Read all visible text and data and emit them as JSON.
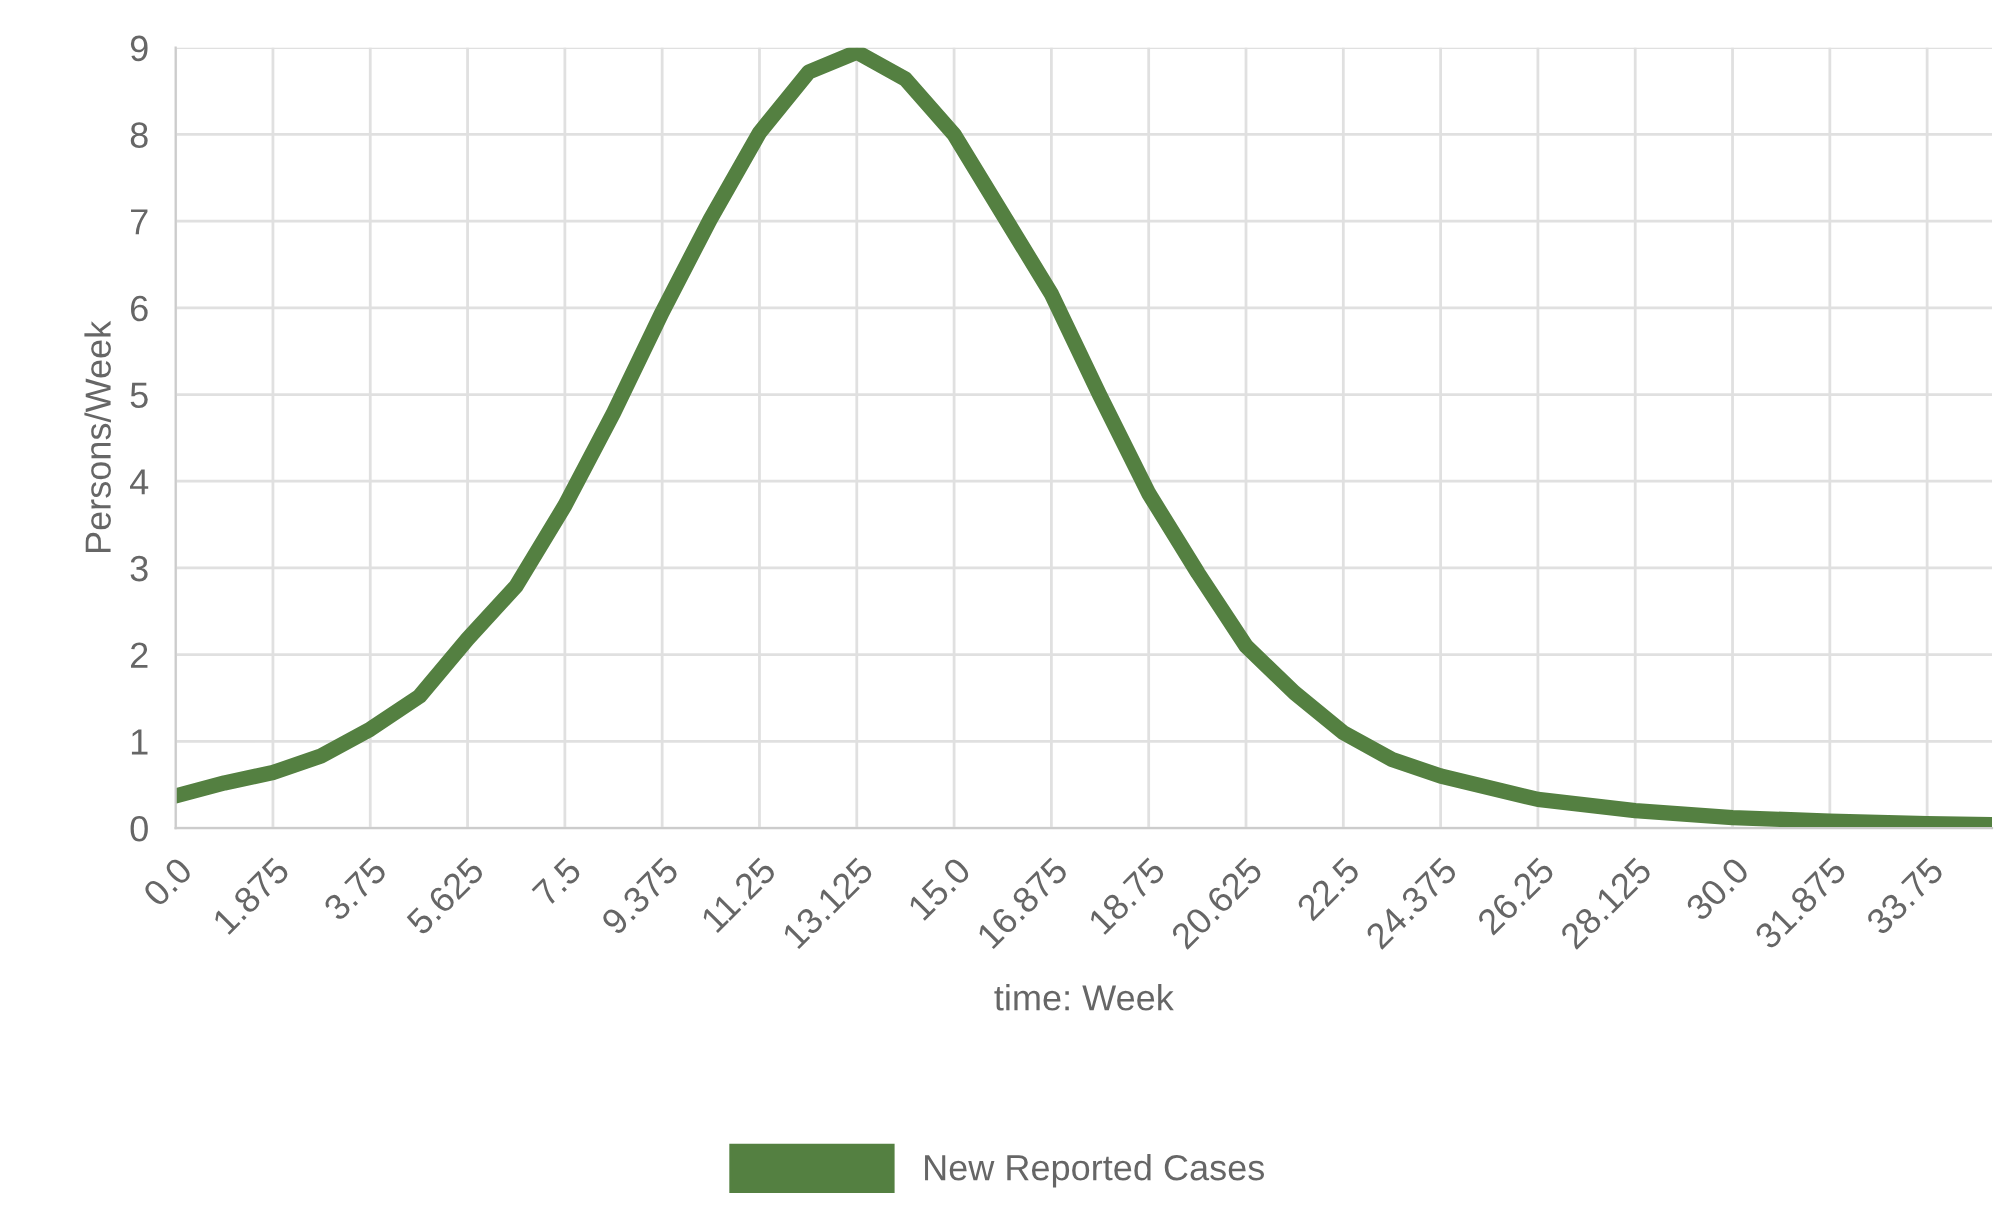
{
  "chart_data": {
    "type": "line",
    "xlabel": "time: Week",
    "ylabel": "Persons/Week",
    "x": [
      0,
      0.94,
      1.875,
      2.8,
      3.75,
      4.7,
      5.625,
      6.56,
      7.5,
      8.44,
      9.375,
      10.3,
      11.25,
      12.2,
      13.125,
      14.06,
      15.0,
      16.875,
      17.8,
      18.75,
      19.7,
      20.625,
      21.56,
      22.5,
      23.44,
      24.375,
      26.25,
      28.125,
      30.0,
      31.875,
      33.75,
      35
    ],
    "series": [
      {
        "name": "New Reported Cases",
        "color": "#548041",
        "values": [
          0.37,
          0.52,
          0.64,
          0.83,
          1.14,
          1.52,
          2.18,
          2.79,
          3.72,
          4.79,
          5.95,
          7.02,
          8.02,
          8.72,
          8.95,
          8.64,
          8.0,
          6.16,
          5.0,
          3.86,
          2.94,
          2.1,
          1.56,
          1.1,
          0.79,
          0.6,
          0.33,
          0.2,
          0.12,
          0.08,
          0.05,
          0.04
        ]
      }
    ],
    "xlim": [
      0,
      35
    ],
    "xticks": [
      {
        "value": 0,
        "label": "0.0"
      },
      1.875,
      3.75,
      5.625,
      7.5,
      9.375,
      11.25,
      13.125,
      {
        "value": 15,
        "label": "15.0"
      },
      16.875,
      18.75,
      20.625,
      22.5,
      24.375,
      26.25,
      28.125,
      {
        "value": 30,
        "label": "30.0"
      },
      31.875,
      33.75
    ],
    "ylim": [
      0,
      9
    ],
    "yticks": [
      0,
      1,
      2,
      3,
      4,
      5,
      6,
      7,
      8,
      9
    ],
    "grid": true,
    "legend": "bottom",
    "marker": "none",
    "line_style": "solid"
  }
}
